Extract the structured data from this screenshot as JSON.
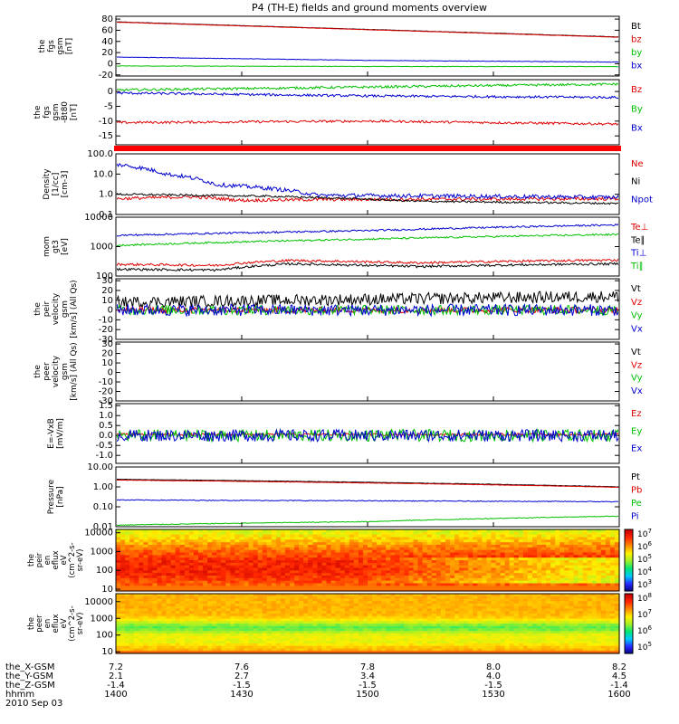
{
  "chart_data": {
    "type": "line",
    "title": "P4 (TH-E) fields and ground moments overview",
    "date": "2010 Sep 03",
    "time_axis": {
      "range": [
        1400,
        1600
      ],
      "ticks": [
        "1400",
        "1430",
        "1500",
        "1530",
        "1600"
      ]
    },
    "ephemeris": [
      {
        "label": "the_X-GSM",
        "values": [
          "7.2",
          "7.6",
          "7.8",
          "8.0",
          "8.2"
        ]
      },
      {
        "label": "the_Y-GSM",
        "values": [
          "2.1",
          "2.7",
          "3.4",
          "4.0",
          "4.5"
        ]
      },
      {
        "label": "the_Z-GSM",
        "values": [
          "-1.4",
          "-1.5",
          "-1.5",
          "-1.5",
          "-1.4"
        ]
      },
      {
        "label": "hhmm",
        "values": [
          "1400",
          "1430",
          "1500",
          "1530",
          "1600"
        ]
      }
    ],
    "panels": [
      {
        "id": "fgs_gsm",
        "ylabel": [
          "the",
          "fgs",
          "gsm",
          "[nT]"
        ],
        "scale": "linear",
        "ylim": [
          -22,
          85
        ],
        "ticks": [
          {
            "v": 80,
            "t": "80"
          },
          {
            "v": 60,
            "t": "60"
          },
          {
            "v": 40,
            "t": "40"
          },
          {
            "v": 20,
            "t": "20"
          },
          {
            "v": 0,
            "t": "0"
          },
          {
            "v": -20,
            "t": "-20"
          }
        ],
        "series": [
          {
            "name": "Bt",
            "color": "#000000",
            "points": [
              [
                0,
                75
              ],
              [
                1,
                48
              ]
            ],
            "noise": 0.3
          },
          {
            "name": "bz",
            "color": "#e00000",
            "points": [
              [
                0,
                74.5
              ],
              [
                1,
                47.5
              ]
            ],
            "noise": 0.3
          },
          {
            "name": "by",
            "color": "#00c000",
            "points": [
              [
                0,
                -4
              ],
              [
                0.3,
                -4.5
              ],
              [
                0.6,
                -5
              ],
              [
                1,
                -5
              ]
            ],
            "noise": 0.4
          },
          {
            "name": "bx",
            "color": "#0000d0",
            "points": [
              [
                0,
                12
              ],
              [
                0.5,
                6
              ],
              [
                1,
                3
              ]
            ],
            "noise": 0.4
          }
        ]
      },
      {
        "id": "fgs_gsm_m80",
        "ylabel": [
          "the",
          "fgs",
          "gsm",
          "-Bt80",
          "[nT]"
        ],
        "scale": "linear",
        "ylim": [
          -18,
          4
        ],
        "ticks": [
          {
            "v": 0,
            "t": "0"
          },
          {
            "v": -5,
            "t": "-5"
          },
          {
            "v": -10,
            "t": "-10"
          },
          {
            "v": -15,
            "t": "-15"
          }
        ],
        "series": [
          {
            "name": "Bz",
            "color": "#e00000",
            "points": [
              [
                0,
                -10.5
              ],
              [
                0.5,
                -10
              ],
              [
                1,
                -11
              ]
            ],
            "noise": 0.4
          },
          {
            "name": "By",
            "color": "#00c000",
            "points": [
              [
                0,
                0.5
              ],
              [
                0.5,
                1.5
              ],
              [
                1,
                2.5
              ]
            ],
            "noise": 0.4
          },
          {
            "name": "Bx",
            "color": "#0000d0",
            "points": [
              [
                0,
                -0.5
              ],
              [
                0.5,
                -1.5
              ],
              [
                1,
                -2
              ]
            ],
            "noise": 0.4
          }
        ]
      },
      {
        "id": "density",
        "ylabel": [
          "Density",
          "[1/cc]",
          "[cm-3]"
        ],
        "scale": "log",
        "ylim": [
          0.1,
          100
        ],
        "ticks": [
          {
            "v": 100,
            "t": "100.0"
          },
          {
            "v": 10,
            "t": "10.0"
          },
          {
            "v": 1,
            "t": "1.0"
          },
          {
            "v": 0.1,
            "t": "0.1"
          }
        ],
        "series": [
          {
            "name": "Ne",
            "color": "#e00000",
            "points": [
              [
                0,
                0.6
              ],
              [
                0.15,
                0.75
              ],
              [
                0.25,
                0.5
              ],
              [
                0.4,
                0.55
              ],
              [
                1,
                0.6
              ]
            ],
            "noise": 0.08
          },
          {
            "name": "Ni",
            "color": "#000000",
            "points": [
              [
                0,
                1.0
              ],
              [
                0.3,
                0.8
              ],
              [
                0.6,
                0.45
              ],
              [
                1,
                0.35
              ]
            ],
            "noise": 0.05
          },
          {
            "name": "Npot",
            "color": "#0000d0",
            "points": [
              [
                0,
                30
              ],
              [
                0.1,
                10
              ],
              [
                0.2,
                3
              ],
              [
                0.3,
                2
              ],
              [
                0.4,
                0.9
              ],
              [
                0.7,
                0.8
              ],
              [
                1,
                0.7
              ]
            ],
            "noise": 0.1
          }
        ]
      },
      {
        "id": "temperature",
        "ylabel": [
          "mom",
          "gt3",
          "[eV]"
        ],
        "scale": "log",
        "ylim": [
          100,
          10000
        ],
        "ticks": [
          {
            "v": 10000,
            "t": "10000"
          },
          {
            "v": 1000,
            "t": "1000"
          },
          {
            "v": 100,
            "t": "100"
          }
        ],
        "series": [
          {
            "name": "Te⊥",
            "color": "#e00000",
            "points": [
              [
                0,
                250
              ],
              [
                0.2,
                230
              ],
              [
                0.28,
                300
              ],
              [
                0.35,
                340
              ],
              [
                0.6,
                280
              ],
              [
                0.8,
                320
              ],
              [
                1,
                350
              ]
            ],
            "noise": 0.04
          },
          {
            "name": "Te∥",
            "color": "#000000",
            "points": [
              [
                0,
                170
              ],
              [
                0.2,
                160
              ],
              [
                0.28,
                220
              ],
              [
                0.35,
                260
              ],
              [
                0.6,
                210
              ],
              [
                0.8,
                240
              ],
              [
                1,
                260
              ]
            ],
            "noise": 0.04
          },
          {
            "name": "Ti⊥",
            "color": "#0000d0",
            "points": [
              [
                0,
                2400
              ],
              [
                0.5,
                3500
              ],
              [
                1,
                5500
              ]
            ],
            "noise": 0.03
          },
          {
            "name": "Ti∥",
            "color": "#00c000",
            "points": [
              [
                0,
                1100
              ],
              [
                0.5,
                1800
              ],
              [
                1,
                2600
              ]
            ],
            "noise": 0.03
          }
        ]
      },
      {
        "id": "peir_velocity",
        "ylabel": [
          "the",
          "peir",
          "velocity",
          "gsm",
          "[km/s] (All Qs)"
        ],
        "scale": "linear",
        "ylim": [
          -30,
          32
        ],
        "ticks": [
          {
            "v": 30,
            "t": "30"
          },
          {
            "v": 20,
            "t": "20"
          },
          {
            "v": 10,
            "t": "10"
          },
          {
            "v": 0,
            "t": "0"
          },
          {
            "v": -10,
            "t": "-10"
          },
          {
            "v": -20,
            "t": "-20"
          },
          {
            "v": -30,
            "t": "-30"
          }
        ],
        "series": [
          {
            "name": "Vt",
            "color": "#000000",
            "points": [
              [
                0,
                8
              ],
              [
                1,
                14
              ]
            ],
            "noise": 6
          },
          {
            "name": "Vz",
            "color": "#e00000",
            "points": [
              [
                0,
                0
              ],
              [
                1,
                0
              ]
            ],
            "noise": 3
          },
          {
            "name": "Vy",
            "color": "#00c000",
            "points": [
              [
                0,
                0
              ],
              [
                1,
                0
              ]
            ],
            "noise": 5
          },
          {
            "name": "Vx",
            "color": "#0000d0",
            "points": [
              [
                0,
                0
              ],
              [
                1,
                0
              ]
            ],
            "noise": 6
          }
        ]
      },
      {
        "id": "peer_velocity",
        "ylabel": [
          "the",
          "peer",
          "velocity",
          "gsm",
          "[km/s] (All Qs)"
        ],
        "scale": "linear",
        "ylim": [
          -30,
          32
        ],
        "ticks": [
          {
            "v": 30,
            "t": "30"
          },
          {
            "v": 20,
            "t": "20"
          },
          {
            "v": 10,
            "t": "10"
          },
          {
            "v": 0,
            "t": "0"
          },
          {
            "v": -10,
            "t": "-10"
          },
          {
            "v": -20,
            "t": "-20"
          },
          {
            "v": -30,
            "t": "-30"
          }
        ],
        "series": [
          {
            "name": "Vt",
            "color": "#000000",
            "points": []
          },
          {
            "name": "Vz",
            "color": "#e00000",
            "points": []
          },
          {
            "name": "Vy",
            "color": "#00c000",
            "points": []
          },
          {
            "name": "Vx",
            "color": "#0000d0",
            "points": []
          }
        ]
      },
      {
        "id": "efield",
        "ylabel": [
          "E=-VxB",
          "[mV/m]"
        ],
        "scale": "linear",
        "ylim": [
          -1.4,
          1.6
        ],
        "ticks": [
          {
            "v": 1.5,
            "t": "1.5"
          },
          {
            "v": 1.0,
            "t": "1.0"
          },
          {
            "v": 0.5,
            "t": "0.5"
          },
          {
            "v": 0,
            "t": "0.0"
          },
          {
            "v": -0.5,
            "t": "-0.5"
          },
          {
            "v": -1.0,
            "t": "-1.0"
          }
        ],
        "series": [
          {
            "name": "Ez",
            "color": "#e00000",
            "points": [
              [
                0,
                0.05
              ],
              [
                1,
                0.05
              ]
            ],
            "noise": 0.06
          },
          {
            "name": "Ey",
            "color": "#00c000",
            "points": [
              [
                0,
                0
              ],
              [
                1,
                0
              ]
            ],
            "noise": 0.3
          },
          {
            "name": "Ex",
            "color": "#0000d0",
            "points": [
              [
                0,
                0
              ],
              [
                1,
                0
              ]
            ],
            "noise": 0.3
          }
        ]
      },
      {
        "id": "pressure",
        "ylabel": [
          "Pressure",
          "[nPa]"
        ],
        "scale": "log",
        "ylim": [
          0.01,
          10
        ],
        "ticks": [
          {
            "v": 10,
            "t": "10.00"
          },
          {
            "v": 1,
            "t": "1.00"
          },
          {
            "v": 0.1,
            "t": "0.10"
          },
          {
            "v": 0.01,
            "t": "0.01"
          }
        ],
        "series": [
          {
            "name": "Pt",
            "color": "#000000",
            "points": [
              [
                0,
                2.4
              ],
              [
                1,
                1.0
              ]
            ],
            "noise": 0.01
          },
          {
            "name": "Pb",
            "color": "#e00000",
            "points": [
              [
                0,
                2.2
              ],
              [
                1,
                0.95
              ]
            ],
            "noise": 0.01
          },
          {
            "name": "Pe",
            "color": "#00c000",
            "points": [
              [
                0,
                0.012
              ],
              [
                0.5,
                0.018
              ],
              [
                1,
                0.034
              ]
            ],
            "noise": 0.02
          },
          {
            "name": "Pi",
            "color": "#0000d0",
            "points": [
              [
                0,
                0.22
              ],
              [
                1,
                0.18
              ]
            ],
            "noise": 0.02
          }
        ]
      }
    ],
    "spectrograms": [
      {
        "id": "peir_en_eflux",
        "ylabel": [
          "the",
          "peir",
          "en",
          "eflux",
          "eV",
          "(cm^2-s-",
          "sr-eV)"
        ],
        "ylim": [
          8,
          15000
        ],
        "ticks": [
          {
            "v": 10000,
            "t": "10000"
          },
          {
            "v": 1000,
            "t": "1000"
          },
          {
            "v": 100,
            "t": "100"
          },
          {
            "v": 10,
            "t": "10"
          }
        ],
        "colorbar": [
          "10^7",
          "10^6",
          "10^5",
          "10^4",
          "10^3"
        ]
      },
      {
        "id": "peer_en_eflux",
        "ylabel": [
          "the",
          "peer",
          "en",
          "eflux",
          "eV",
          "(cm^2-s-",
          "sr-eV)"
        ],
        "ylim": [
          8,
          30000
        ],
        "ticks": [
          {
            "v": 10000,
            "t": "10000"
          },
          {
            "v": 1000,
            "t": "1000"
          },
          {
            "v": 100,
            "t": "100"
          },
          {
            "v": 10,
            "t": "10"
          }
        ],
        "colorbar": [
          "10^8",
          "10^7",
          "10^6",
          "10^5"
        ]
      }
    ]
  }
}
